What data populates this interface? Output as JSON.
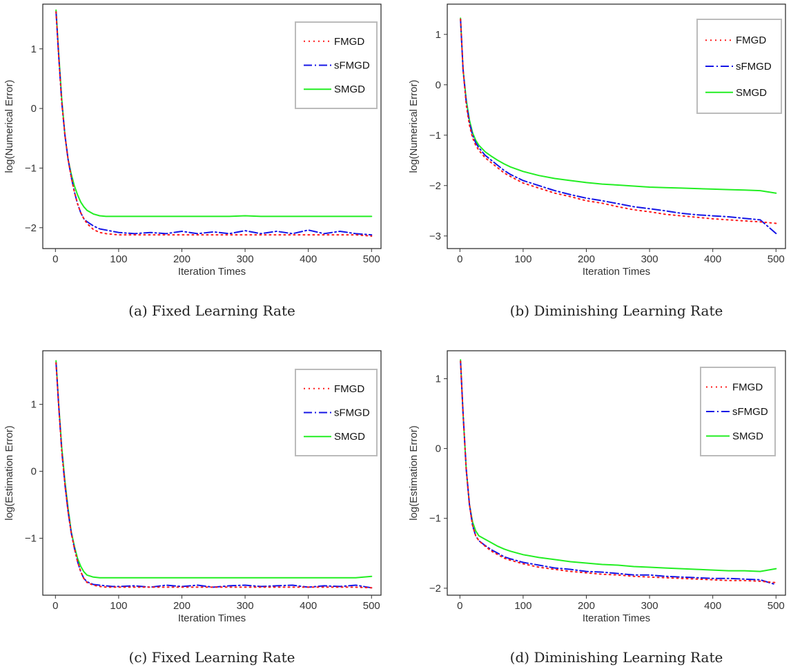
{
  "colors": {
    "FMGD": "#ff1a1a",
    "sFMGD": "#1515e6",
    "SMGD": "#22ee22"
  },
  "chart_data": [
    {
      "type": "line",
      "caption": "(a) Fixed Learning Rate",
      "xlabel": "Iteration Times",
      "ylabel": "log(Numerical Error)",
      "xlim": [
        -20,
        515
      ],
      "ylim": [
        -2.35,
        1.75
      ],
      "xticks": [
        0,
        100,
        200,
        300,
        400,
        500
      ],
      "yticks": [
        -2,
        -1,
        0,
        1
      ],
      "legend_position": "top-right",
      "series": [
        {
          "name": "FMGD",
          "style": "dotted",
          "x": [
            1,
            5,
            10,
            15,
            20,
            25,
            30,
            35,
            40,
            45,
            50,
            60,
            70,
            80,
            90,
            100,
            125,
            150,
            175,
            200,
            225,
            250,
            275,
            300,
            325,
            350,
            375,
            400,
            425,
            450,
            475,
            500
          ],
          "y": [
            1.62,
            0.9,
            0.1,
            -0.45,
            -0.85,
            -1.15,
            -1.4,
            -1.6,
            -1.75,
            -1.85,
            -1.93,
            -2.03,
            -2.08,
            -2.1,
            -2.11,
            -2.12,
            -2.12,
            -2.12,
            -2.12,
            -2.12,
            -2.12,
            -2.12,
            -2.12,
            -2.12,
            -2.12,
            -2.12,
            -2.12,
            -2.12,
            -2.12,
            -2.12,
            -2.12,
            -2.14
          ]
        },
        {
          "name": "sFMGD",
          "style": "dashdot",
          "x": [
            1,
            5,
            10,
            15,
            20,
            25,
            30,
            35,
            40,
            45,
            50,
            60,
            70,
            80,
            90,
            100,
            125,
            150,
            175,
            200,
            225,
            250,
            275,
            300,
            325,
            350,
            375,
            400,
            425,
            450,
            475,
            500
          ],
          "y": [
            1.62,
            0.9,
            0.1,
            -0.45,
            -0.85,
            -1.15,
            -1.4,
            -1.6,
            -1.75,
            -1.85,
            -1.9,
            -1.97,
            -2.02,
            -2.04,
            -2.06,
            -2.08,
            -2.1,
            -2.08,
            -2.1,
            -2.06,
            -2.1,
            -2.07,
            -2.1,
            -2.05,
            -2.1,
            -2.06,
            -2.1,
            -2.04,
            -2.1,
            -2.06,
            -2.1,
            -2.12
          ]
        },
        {
          "name": "SMGD",
          "style": "solid",
          "x": [
            1,
            5,
            10,
            15,
            20,
            25,
            30,
            35,
            40,
            45,
            50,
            60,
            70,
            80,
            90,
            100,
            125,
            150,
            175,
            200,
            225,
            250,
            275,
            300,
            325,
            350,
            375,
            400,
            425,
            450,
            475,
            500
          ],
          "y": [
            1.65,
            0.95,
            0.15,
            -0.45,
            -0.85,
            -1.1,
            -1.3,
            -1.45,
            -1.57,
            -1.65,
            -1.71,
            -1.77,
            -1.8,
            -1.81,
            -1.81,
            -1.81,
            -1.81,
            -1.81,
            -1.81,
            -1.81,
            -1.81,
            -1.81,
            -1.81,
            -1.8,
            -1.81,
            -1.81,
            -1.81,
            -1.81,
            -1.81,
            -1.81,
            -1.81,
            -1.81
          ]
        }
      ]
    },
    {
      "type": "line",
      "caption": "(b) Diminishing Learning Rate",
      "xlabel": "Iteration Times",
      "ylabel": "log(Numerical Error)",
      "xlim": [
        -20,
        515
      ],
      "ylim": [
        -3.25,
        1.6
      ],
      "xticks": [
        0,
        100,
        200,
        300,
        400,
        500
      ],
      "yticks": [
        -3,
        -2,
        -1,
        0,
        1
      ],
      "legend_position": "top-right",
      "series": [
        {
          "name": "FMGD",
          "style": "dotted",
          "x": [
            1,
            5,
            10,
            15,
            20,
            25,
            30,
            40,
            50,
            60,
            70,
            80,
            100,
            125,
            150,
            175,
            200,
            225,
            250,
            275,
            300,
            325,
            350,
            375,
            400,
            425,
            450,
            475,
            500
          ],
          "y": [
            1.3,
            0.3,
            -0.4,
            -0.8,
            -1.05,
            -1.2,
            -1.3,
            -1.45,
            -1.55,
            -1.65,
            -1.75,
            -1.82,
            -1.95,
            -2.05,
            -2.15,
            -2.22,
            -2.3,
            -2.35,
            -2.42,
            -2.48,
            -2.52,
            -2.57,
            -2.6,
            -2.63,
            -2.66,
            -2.68,
            -2.7,
            -2.72,
            -2.75
          ]
        },
        {
          "name": "sFMGD",
          "style": "dashdot",
          "x": [
            1,
            5,
            10,
            15,
            20,
            25,
            30,
            40,
            50,
            60,
            70,
            80,
            100,
            125,
            150,
            175,
            200,
            225,
            250,
            275,
            300,
            325,
            350,
            375,
            400,
            425,
            450,
            475,
            500
          ],
          "y": [
            1.3,
            0.3,
            -0.35,
            -0.75,
            -1.0,
            -1.15,
            -1.25,
            -1.4,
            -1.5,
            -1.6,
            -1.7,
            -1.78,
            -1.9,
            -2.0,
            -2.1,
            -2.18,
            -2.25,
            -2.3,
            -2.36,
            -2.42,
            -2.46,
            -2.5,
            -2.55,
            -2.58,
            -2.6,
            -2.62,
            -2.65,
            -2.68,
            -2.95
          ]
        },
        {
          "name": "SMGD",
          "style": "solid",
          "x": [
            1,
            5,
            10,
            15,
            20,
            25,
            30,
            40,
            50,
            60,
            70,
            80,
            100,
            125,
            150,
            175,
            200,
            225,
            250,
            275,
            300,
            325,
            350,
            375,
            400,
            425,
            450,
            475,
            500
          ],
          "y": [
            1.32,
            0.3,
            -0.3,
            -0.7,
            -0.95,
            -1.1,
            -1.2,
            -1.33,
            -1.42,
            -1.5,
            -1.57,
            -1.63,
            -1.72,
            -1.8,
            -1.86,
            -1.9,
            -1.94,
            -1.97,
            -1.99,
            -2.01,
            -2.03,
            -2.04,
            -2.05,
            -2.06,
            -2.07,
            -2.08,
            -2.09,
            -2.1,
            -2.15
          ]
        }
      ]
    },
    {
      "type": "line",
      "caption": "(c) Fixed Learning Rate",
      "xlabel": "Iteration Times",
      "ylabel": "log(Estimation Error)",
      "xlim": [
        -20,
        515
      ],
      "ylim": [
        -1.85,
        1.8
      ],
      "xticks": [
        0,
        100,
        200,
        300,
        400,
        500
      ],
      "yticks": [
        -1,
        0,
        1
      ],
      "legend_position": "top-right",
      "series": [
        {
          "name": "FMGD",
          "style": "dotted",
          "x": [
            1,
            5,
            10,
            15,
            20,
            25,
            30,
            35,
            40,
            45,
            50,
            60,
            70,
            80,
            90,
            100,
            125,
            150,
            175,
            200,
            225,
            250,
            275,
            300,
            325,
            350,
            375,
            400,
            425,
            450,
            475,
            500
          ],
          "y": [
            1.62,
            1.0,
            0.3,
            -0.2,
            -0.6,
            -0.92,
            -1.15,
            -1.35,
            -1.5,
            -1.6,
            -1.66,
            -1.7,
            -1.72,
            -1.73,
            -1.73,
            -1.73,
            -1.73,
            -1.73,
            -1.73,
            -1.73,
            -1.73,
            -1.73,
            -1.73,
            -1.73,
            -1.73,
            -1.73,
            -1.73,
            -1.73,
            -1.73,
            -1.73,
            -1.73,
            -1.74
          ]
        },
        {
          "name": "sFMGD",
          "style": "dashdot",
          "x": [
            1,
            5,
            10,
            15,
            20,
            25,
            30,
            35,
            40,
            45,
            50,
            60,
            70,
            80,
            90,
            100,
            125,
            150,
            175,
            200,
            225,
            250,
            275,
            300,
            325,
            350,
            375,
            400,
            425,
            450,
            475,
            500
          ],
          "y": [
            1.62,
            1.0,
            0.3,
            -0.2,
            -0.6,
            -0.92,
            -1.15,
            -1.35,
            -1.5,
            -1.6,
            -1.65,
            -1.69,
            -1.7,
            -1.71,
            -1.72,
            -1.72,
            -1.71,
            -1.73,
            -1.7,
            -1.72,
            -1.7,
            -1.73,
            -1.71,
            -1.7,
            -1.72,
            -1.71,
            -1.7,
            -1.73,
            -1.71,
            -1.72,
            -1.7,
            -1.74
          ]
        },
        {
          "name": "SMGD",
          "style": "solid",
          "x": [
            1,
            5,
            10,
            15,
            20,
            25,
            30,
            35,
            40,
            45,
            50,
            60,
            70,
            80,
            90,
            100,
            125,
            150,
            175,
            200,
            225,
            250,
            275,
            300,
            325,
            350,
            375,
            400,
            425,
            450,
            475,
            500
          ],
          "y": [
            1.65,
            1.02,
            0.35,
            -0.15,
            -0.55,
            -0.9,
            -1.12,
            -1.3,
            -1.42,
            -1.5,
            -1.55,
            -1.58,
            -1.59,
            -1.59,
            -1.59,
            -1.59,
            -1.59,
            -1.59,
            -1.59,
            -1.59,
            -1.59,
            -1.59,
            -1.59,
            -1.59,
            -1.59,
            -1.59,
            -1.59,
            -1.59,
            -1.59,
            -1.59,
            -1.59,
            -1.57
          ]
        }
      ]
    },
    {
      "type": "line",
      "caption": "(d) Diminishing Learning Rate",
      "xlabel": "Iteration Times",
      "ylabel": "log(Estimation Error)",
      "xlim": [
        -20,
        515
      ],
      "ylim": [
        -2.1,
        1.4
      ],
      "xticks": [
        0,
        100,
        200,
        300,
        400,
        500
      ],
      "yticks": [
        -2,
        -1,
        0,
        1
      ],
      "legend_position": "top-right",
      "series": [
        {
          "name": "FMGD",
          "style": "dotted",
          "x": [
            1,
            5,
            10,
            15,
            20,
            25,
            30,
            40,
            50,
            60,
            70,
            80,
            100,
            125,
            150,
            175,
            200,
            225,
            250,
            275,
            300,
            325,
            350,
            375,
            400,
            425,
            450,
            475,
            500
          ],
          "y": [
            1.25,
            0.5,
            -0.3,
            -0.8,
            -1.1,
            -1.25,
            -1.32,
            -1.4,
            -1.47,
            -1.52,
            -1.57,
            -1.6,
            -1.65,
            -1.7,
            -1.73,
            -1.76,
            -1.78,
            -1.8,
            -1.81,
            -1.83,
            -1.84,
            -1.85,
            -1.86,
            -1.87,
            -1.88,
            -1.89,
            -1.89,
            -1.9,
            -1.92
          ]
        },
        {
          "name": "sFMGD",
          "style": "dashdot",
          "x": [
            1,
            5,
            10,
            15,
            20,
            25,
            30,
            40,
            50,
            60,
            70,
            80,
            100,
            125,
            150,
            175,
            200,
            225,
            250,
            275,
            300,
            325,
            350,
            375,
            400,
            425,
            450,
            475,
            500
          ],
          "y": [
            1.25,
            0.5,
            -0.3,
            -0.8,
            -1.1,
            -1.25,
            -1.32,
            -1.39,
            -1.45,
            -1.5,
            -1.55,
            -1.58,
            -1.63,
            -1.67,
            -1.71,
            -1.73,
            -1.76,
            -1.77,
            -1.79,
            -1.81,
            -1.81,
            -1.83,
            -1.84,
            -1.85,
            -1.86,
            -1.86,
            -1.87,
            -1.88,
            -1.95
          ]
        },
        {
          "name": "SMGD",
          "style": "solid",
          "x": [
            1,
            5,
            10,
            15,
            20,
            25,
            30,
            40,
            50,
            60,
            70,
            80,
            100,
            125,
            150,
            175,
            200,
            225,
            250,
            275,
            300,
            325,
            350,
            375,
            400,
            425,
            450,
            475,
            500
          ],
          "y": [
            1.27,
            0.5,
            -0.3,
            -0.8,
            -1.05,
            -1.18,
            -1.25,
            -1.3,
            -1.35,
            -1.4,
            -1.44,
            -1.47,
            -1.52,
            -1.56,
            -1.59,
            -1.62,
            -1.64,
            -1.66,
            -1.67,
            -1.69,
            -1.7,
            -1.71,
            -1.72,
            -1.73,
            -1.74,
            -1.75,
            -1.75,
            -1.76,
            -1.72
          ]
        }
      ]
    }
  ]
}
